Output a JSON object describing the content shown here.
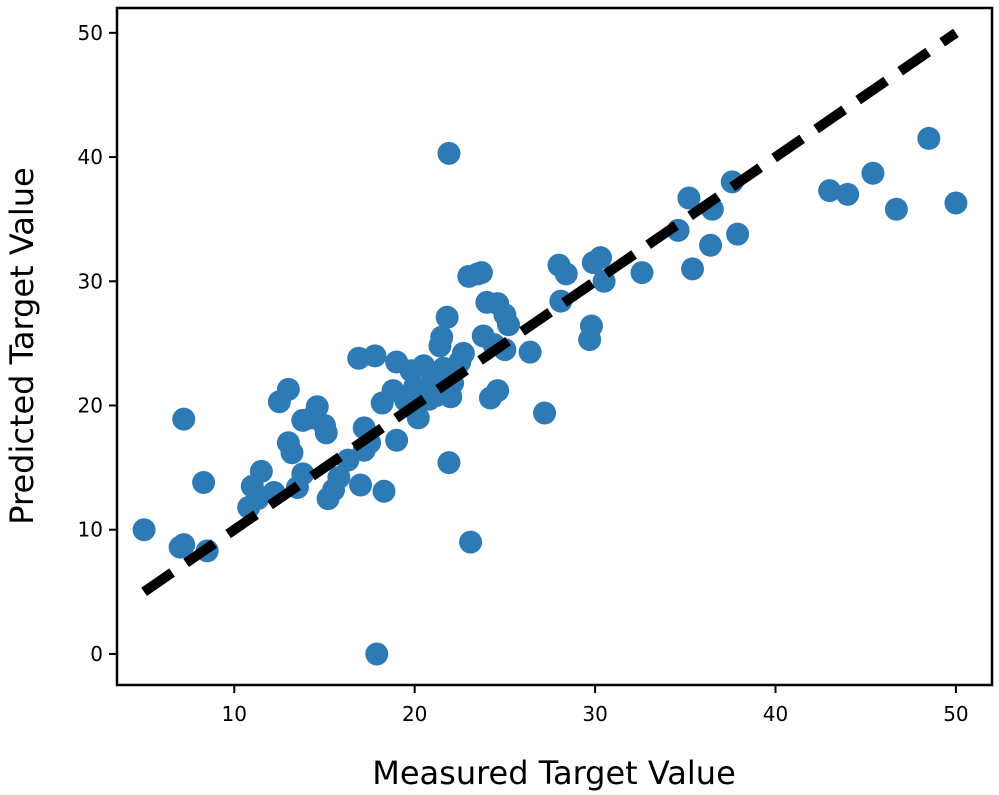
{
  "chart_data": {
    "type": "scatter",
    "title": "",
    "xlabel": "Measured Target Value",
    "ylabel": "Predicted Target Value",
    "xlim": [
      3.5,
      52
    ],
    "ylim": [
      -2.5,
      52
    ],
    "x_ticks": [
      10,
      20,
      30,
      40,
      50
    ],
    "y_ticks": [
      0,
      10,
      20,
      30,
      40,
      50
    ],
    "grid": false,
    "legend": "none",
    "point_color": "#2e7ab4",
    "reference_line": {
      "label": "",
      "style": "dashed",
      "color": "#000000",
      "from": [
        5,
        5
      ],
      "to": [
        50,
        50
      ]
    },
    "points": [
      {
        "x": 5.0,
        "y": 10.0
      },
      {
        "x": 7.0,
        "y": 8.6
      },
      {
        "x": 7.2,
        "y": 8.8
      },
      {
        "x": 7.2,
        "y": 18.9
      },
      {
        "x": 8.5,
        "y": 8.3
      },
      {
        "x": 8.3,
        "y": 13.8
      },
      {
        "x": 10.8,
        "y": 11.8
      },
      {
        "x": 11.0,
        "y": 13.5
      },
      {
        "x": 11.3,
        "y": 12.5
      },
      {
        "x": 11.5,
        "y": 14.7
      },
      {
        "x": 12.2,
        "y": 13.0
      },
      {
        "x": 12.5,
        "y": 20.3
      },
      {
        "x": 13.0,
        "y": 21.3
      },
      {
        "x": 13.0,
        "y": 17.0
      },
      {
        "x": 13.2,
        "y": 16.2
      },
      {
        "x": 13.5,
        "y": 13.4
      },
      {
        "x": 13.8,
        "y": 14.5
      },
      {
        "x": 13.8,
        "y": 18.8
      },
      {
        "x": 14.3,
        "y": 19.0
      },
      {
        "x": 14.6,
        "y": 19.9
      },
      {
        "x": 15.0,
        "y": 18.4
      },
      {
        "x": 15.1,
        "y": 17.8
      },
      {
        "x": 15.2,
        "y": 12.5
      },
      {
        "x": 15.5,
        "y": 13.2
      },
      {
        "x": 15.8,
        "y": 14.2
      },
      {
        "x": 16.3,
        "y": 15.6
      },
      {
        "x": 17.0,
        "y": 13.6
      },
      {
        "x": 17.2,
        "y": 16.4
      },
      {
        "x": 17.5,
        "y": 17.0
      },
      {
        "x": 16.9,
        "y": 23.8
      },
      {
        "x": 17.2,
        "y": 18.2
      },
      {
        "x": 17.8,
        "y": 24.0
      },
      {
        "x": 17.9,
        "y": 0.0
      },
      {
        "x": 18.2,
        "y": 20.2
      },
      {
        "x": 18.3,
        "y": 13.1
      },
      {
        "x": 18.8,
        "y": 21.2
      },
      {
        "x": 19.0,
        "y": 17.2
      },
      {
        "x": 19.0,
        "y": 23.5
      },
      {
        "x": 19.5,
        "y": 20.4
      },
      {
        "x": 19.8,
        "y": 22.8
      },
      {
        "x": 20.0,
        "y": 21.5
      },
      {
        "x": 20.2,
        "y": 19.0
      },
      {
        "x": 20.5,
        "y": 23.2
      },
      {
        "x": 20.8,
        "y": 20.5
      },
      {
        "x": 21.0,
        "y": 22.0
      },
      {
        "x": 21.2,
        "y": 20.8
      },
      {
        "x": 21.4,
        "y": 24.8
      },
      {
        "x": 21.5,
        "y": 25.5
      },
      {
        "x": 21.6,
        "y": 23.0
      },
      {
        "x": 21.8,
        "y": 27.1
      },
      {
        "x": 21.9,
        "y": 15.4
      },
      {
        "x": 21.9,
        "y": 40.3
      },
      {
        "x": 22.0,
        "y": 20.7
      },
      {
        "x": 22.1,
        "y": 21.8
      },
      {
        "x": 22.5,
        "y": 23.5
      },
      {
        "x": 22.7,
        "y": 24.2
      },
      {
        "x": 23.0,
        "y": 30.4
      },
      {
        "x": 23.1,
        "y": 9.0
      },
      {
        "x": 23.5,
        "y": 30.6
      },
      {
        "x": 23.7,
        "y": 30.7
      },
      {
        "x": 23.8,
        "y": 25.6
      },
      {
        "x": 24.0,
        "y": 28.3
      },
      {
        "x": 24.2,
        "y": 20.6
      },
      {
        "x": 24.4,
        "y": 24.9
      },
      {
        "x": 24.6,
        "y": 28.2
      },
      {
        "x": 24.6,
        "y": 21.2
      },
      {
        "x": 25.0,
        "y": 27.3
      },
      {
        "x": 25.2,
        "y": 26.5
      },
      {
        "x": 25.0,
        "y": 24.5
      },
      {
        "x": 26.4,
        "y": 24.3
      },
      {
        "x": 27.2,
        "y": 19.4
      },
      {
        "x": 28.0,
        "y": 31.3
      },
      {
        "x": 28.1,
        "y": 28.4
      },
      {
        "x": 28.4,
        "y": 30.6
      },
      {
        "x": 29.7,
        "y": 25.3
      },
      {
        "x": 29.8,
        "y": 26.4
      },
      {
        "x": 29.9,
        "y": 31.5
      },
      {
        "x": 30.3,
        "y": 31.9
      },
      {
        "x": 30.5,
        "y": 30.0
      },
      {
        "x": 32.6,
        "y": 30.7
      },
      {
        "x": 34.6,
        "y": 34.1
      },
      {
        "x": 35.2,
        "y": 36.7
      },
      {
        "x": 35.4,
        "y": 31.0
      },
      {
        "x": 36.4,
        "y": 32.9
      },
      {
        "x": 36.5,
        "y": 35.8
      },
      {
        "x": 37.6,
        "y": 38.0
      },
      {
        "x": 37.9,
        "y": 33.8
      },
      {
        "x": 43.0,
        "y": 37.3
      },
      {
        "x": 44.0,
        "y": 37.0
      },
      {
        "x": 45.4,
        "y": 38.7
      },
      {
        "x": 46.7,
        "y": 35.8
      },
      {
        "x": 48.5,
        "y": 41.5
      },
      {
        "x": 50.0,
        "y": 36.3
      }
    ]
  }
}
